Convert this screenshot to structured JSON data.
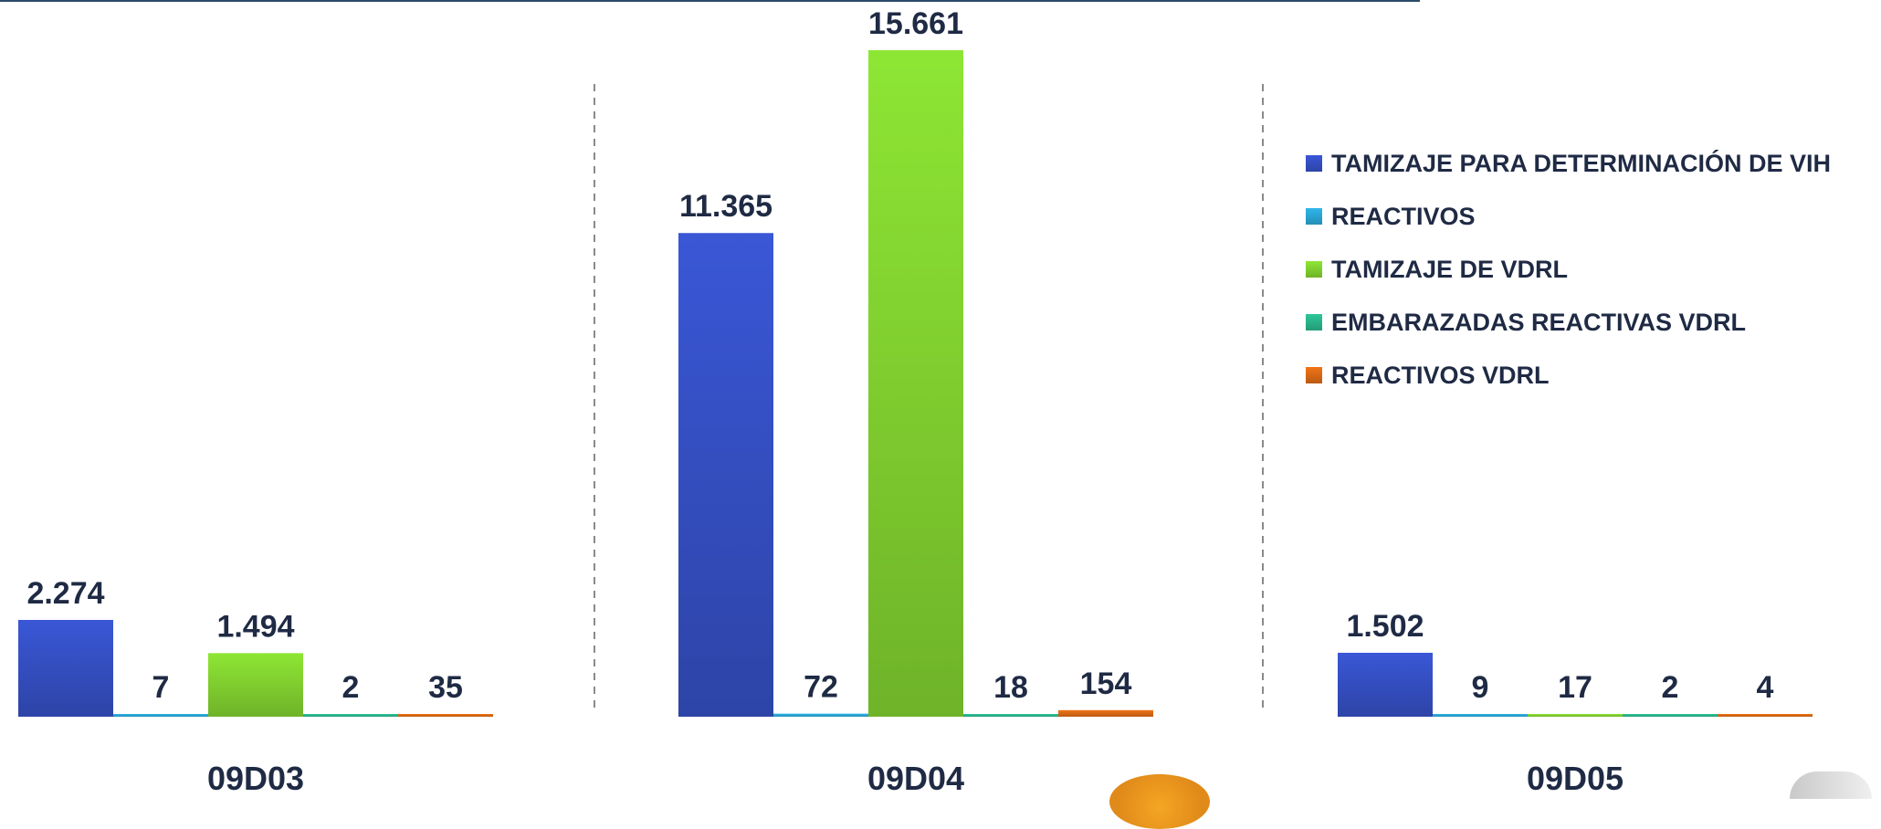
{
  "chart_data": {
    "type": "bar",
    "categories": [
      "09D03",
      "09D04",
      "09D05"
    ],
    "series": [
      {
        "name": "TAMIZAJE PARA DETERMINACIÓN DE VIH",
        "color": "#3a57d6",
        "values": [
          2274,
          11365,
          1502
        ],
        "labels": [
          "2.274",
          "11.365",
          "1.502"
        ]
      },
      {
        "name": "REACTIVOS",
        "color": "#2fb6ea",
        "values": [
          7,
          72,
          9
        ],
        "labels": [
          "7",
          "72",
          "9"
        ]
      },
      {
        "name": "TAMIZAJE DE VDRL",
        "color": "#8ee634",
        "values": [
          1494,
          15661,
          17
        ],
        "labels": [
          "1.494",
          "15.661",
          "17"
        ]
      },
      {
        "name": "EMBARAZADAS REACTIVAS VDRL",
        "color": "#2ec79a",
        "values": [
          2,
          18,
          2
        ],
        "labels": [
          "2",
          "18",
          "2"
        ]
      },
      {
        "name": "REACTIVOS VDRL",
        "color": "#f07417",
        "values": [
          35,
          154,
          4
        ],
        "labels": [
          "35",
          "154",
          "4"
        ]
      }
    ],
    "ylim": [
      0,
      15661
    ],
    "legend_position": "right",
    "grid": false,
    "separators": "dashed-vertical"
  }
}
